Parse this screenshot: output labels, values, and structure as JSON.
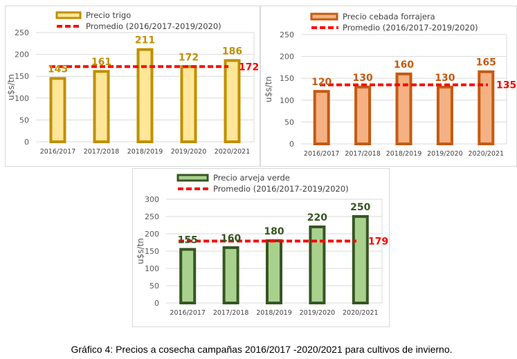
{
  "chart_data": [
    {
      "type": "bar",
      "title": "",
      "categories": [
        "2016/2017",
        "2017/2018",
        "2018/2019",
        "2019/2020",
        "2020/2021"
      ],
      "series": [
        {
          "name": "Precio trigo",
          "values": [
            145,
            161,
            211,
            172,
            186
          ]
        }
      ],
      "average": {
        "name": "Promedio (2016/2017-2019/2020)",
        "value": 172
      },
      "ylabel": "u$s/tn",
      "xlabel": "",
      "ylim": [
        0,
        250
      ],
      "yticks": [
        0,
        50,
        100,
        150,
        200,
        250
      ],
      "grid": true,
      "legend": "top",
      "colors": {
        "stroke": "#BF9000",
        "fill": "#FFE699",
        "label": "#BF9000",
        "average": "#FF0000"
      }
    },
    {
      "type": "bar",
      "title": "",
      "categories": [
        "2016/2017",
        "2017/2018",
        "2018/2019",
        "2019/2020",
        "2020/2021"
      ],
      "series": [
        {
          "name": "Precio cebada forrajera",
          "values": [
            120,
            130,
            160,
            130,
            165
          ]
        }
      ],
      "average": {
        "name": "Promedio (2016/2017-2019/2020)",
        "value": 135
      },
      "ylabel": "u$s/tn",
      "xlabel": "",
      "ylim": [
        0,
        250
      ],
      "yticks": [
        0,
        50,
        100,
        150,
        200,
        250
      ],
      "grid": true,
      "legend": "top",
      "colors": {
        "stroke": "#C55A11",
        "fill": "#F4B183",
        "label": "#C55A11",
        "average": "#FF0000"
      }
    },
    {
      "type": "bar",
      "title": "",
      "categories": [
        "2016/2017",
        "2017/2018",
        "2018/2019",
        "2019/2020",
        "2020/2021"
      ],
      "series": [
        {
          "name": "Precio arveja verde",
          "values": [
            155,
            160,
            180,
            220,
            250
          ]
        }
      ],
      "average": {
        "name": "Promedio (2016/2017-2019/2020)",
        "value": 179
      },
      "ylabel": "u$s/tn",
      "xlabel": "",
      "ylim": [
        0,
        300
      ],
      "yticks": [
        0,
        50,
        100,
        150,
        200,
        250,
        300
      ],
      "grid": true,
      "legend": "top",
      "colors": {
        "stroke": "#375623",
        "fill": "#A9D18E",
        "label": "#375623",
        "average": "#FF0000"
      }
    }
  ],
  "caption": "Gráfico 4: Precios a cosecha campañas 2016/2017 -2020/2021 para cultivos de invierno."
}
